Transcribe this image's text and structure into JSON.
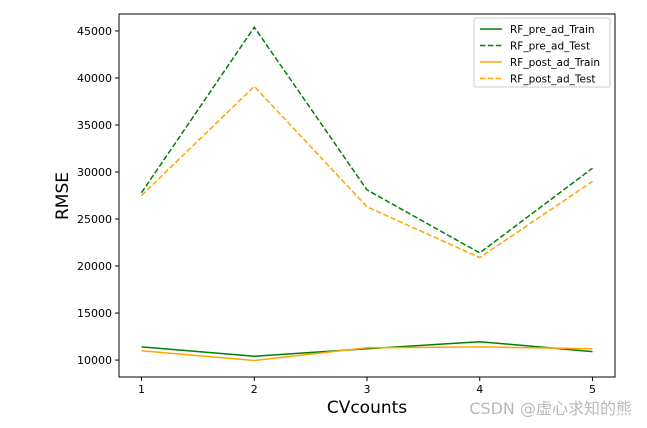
{
  "chart_data": {
    "type": "line",
    "title": "",
    "xlabel": "CVcounts",
    "ylabel": "RMSE",
    "x": [
      1,
      2,
      3,
      4,
      5
    ],
    "xlim": [
      0.8,
      5.2
    ],
    "ylim": [
      8200,
      46800
    ],
    "xticks": [
      "1",
      "2",
      "3",
      "4",
      "5"
    ],
    "yticks": [
      10000,
      15000,
      20000,
      25000,
      30000,
      35000,
      40000,
      45000
    ],
    "grid": false,
    "legend_position": "top-right",
    "series": [
      {
        "name": "RF_pre_ad_Train",
        "color": "#008000",
        "style": "solid",
        "values": [
          11400,
          10400,
          11200,
          11950,
          10900
        ]
      },
      {
        "name": "RF_pre_ad_Test",
        "color": "#008000",
        "style": "dashed",
        "values": [
          27800,
          45400,
          28100,
          21400,
          30400
        ]
      },
      {
        "name": "RF_post_ad_Train",
        "color": "#FFA500",
        "style": "solid",
        "values": [
          11000,
          9950,
          11300,
          11400,
          11200
        ]
      },
      {
        "name": "RF_post_ad_Test",
        "color": "#FFA500",
        "style": "dashed",
        "values": [
          27500,
          39100,
          26300,
          20900,
          29000
        ]
      }
    ]
  },
  "watermark": "CSDN @虚心求知的熊"
}
